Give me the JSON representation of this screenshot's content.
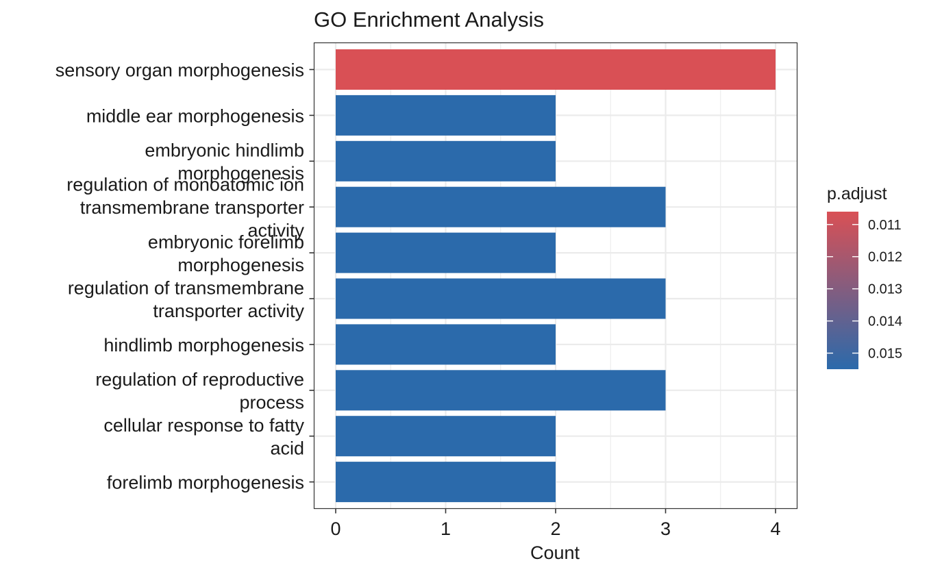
{
  "chart_data": {
    "type": "bar",
    "orientation": "horizontal",
    "title": "GO Enrichment Analysis",
    "xlabel": "Count",
    "ylabel": "",
    "xlim": [
      0,
      4
    ],
    "xticks": [
      "0",
      "1",
      "2",
      "3",
      "4"
    ],
    "grid": true,
    "legend_position": "right",
    "categories": [
      "sensory organ morphogenesis",
      "middle ear morphogenesis",
      "embryonic hindlimb morphogenesis",
      "regulation of monoatomic ion transmembrane transporter activity",
      "embryonic forelimb morphogenesis",
      "regulation of transmembrane transporter activity",
      "hindlimb morphogenesis",
      "regulation of reproductive process",
      "cellular response to fatty acid",
      "forelimb morphogenesis"
    ],
    "category_lines": [
      [
        "sensory organ morphogenesis"
      ],
      [
        "middle ear morphogenesis"
      ],
      [
        "embryonic hindlimb",
        "morphogenesis"
      ],
      [
        "regulation of monoatomic ion",
        "transmembrane transporter",
        "activity"
      ],
      [
        "embryonic forelimb",
        "morphogenesis"
      ],
      [
        "regulation of transmembrane",
        "transporter activity"
      ],
      [
        "hindlimb morphogenesis"
      ],
      [
        "regulation of reproductive",
        "process"
      ],
      [
        "cellular response to fatty",
        "acid"
      ],
      [
        "forelimb morphogenesis"
      ]
    ],
    "values": [
      4,
      2,
      2,
      3,
      2,
      3,
      2,
      3,
      2,
      2
    ],
    "p_adjust": [
      0.0106,
      0.0155,
      0.0155,
      0.0155,
      0.0155,
      0.0155,
      0.0155,
      0.0155,
      0.0155,
      0.0155
    ],
    "color_scale": {
      "title": "p.adjust",
      "min": 0.0106,
      "max": 0.0155,
      "low_color": "#d95055",
      "high_color": "#2b6aab",
      "ticks": [
        "0.011",
        "0.012",
        "0.013",
        "0.014",
        "0.015"
      ]
    }
  }
}
